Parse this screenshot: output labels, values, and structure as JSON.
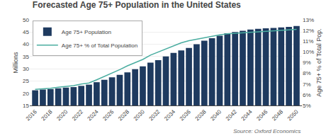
{
  "chart_data": {
    "type": "bar",
    "title": "Forecasted Age 75+ Population in the United States",
    "x": [
      2016,
      2017,
      2018,
      2019,
      2020,
      2021,
      2022,
      2023,
      2024,
      2025,
      2026,
      2027,
      2028,
      2029,
      2030,
      2031,
      2032,
      2033,
      2034,
      2035,
      2036,
      2037,
      2038,
      2039,
      2040,
      2041,
      2042,
      2043,
      2044,
      2045,
      2046,
      2047,
      2048,
      2049,
      2050
    ],
    "series": [
      {
        "name": "Age 75+ Population",
        "type": "bar",
        "color": "#1e3a5f",
        "values": [
          21.2,
          21.5,
          21.7,
          22.0,
          22.3,
          22.5,
          23.0,
          23.5,
          24.5,
          25.5,
          26.5,
          27.5,
          28.5,
          29.8,
          31.0,
          32.5,
          33.5,
          35.0,
          36.5,
          37.5,
          38.5,
          40.0,
          41.5,
          42.5,
          43.5,
          44.5,
          45.0,
          45.5,
          46.0,
          46.3,
          46.5,
          46.7,
          46.9,
          47.1,
          47.5
        ]
      },
      {
        "name": "Age 75+ % of Total Population",
        "type": "line",
        "color": "#4aada0",
        "axis": "y2",
        "values": [
          6.5,
          6.55,
          6.6,
          6.7,
          6.8,
          6.85,
          7.0,
          7.1,
          7.4,
          7.7,
          8.0,
          8.35,
          8.7,
          9.0,
          9.3,
          9.7,
          10.0,
          10.3,
          10.6,
          10.85,
          11.05,
          11.2,
          11.35,
          11.5,
          11.6,
          11.7,
          11.75,
          11.8,
          11.85,
          11.9,
          11.9,
          11.95,
          12.0,
          12.05,
          12.1
        ]
      }
    ],
    "ylabel": "Millions",
    "y2label": "Age 75+ % of Total Pop.",
    "xlim": [
      2015.3,
      2050.7
    ],
    "xticks": [
      2016,
      2018,
      2020,
      2022,
      2024,
      2026,
      2028,
      2030,
      2032,
      2034,
      2036,
      2038,
      2040,
      2042,
      2044,
      2046,
      2048,
      2050
    ],
    "ylim": [
      15,
      50
    ],
    "yticks": [
      15,
      20,
      25,
      30,
      35,
      40,
      45,
      50
    ],
    "y2lim": [
      5,
      13
    ],
    "y2ticks": [
      {
        "value": 5,
        "label": "5%"
      },
      {
        "value": 6,
        "label": "6%"
      },
      {
        "value": 7,
        "label": "7%"
      },
      {
        "value": 8,
        "label": "8%"
      },
      {
        "value": 9,
        "label": "9%"
      },
      {
        "value": 10,
        "label": "10%"
      },
      {
        "value": 11,
        "label": "11%"
      },
      {
        "value": 12,
        "label": "12%"
      },
      {
        "value": 13,
        "label": "13%"
      }
    ],
    "grid": true,
    "legend": "upper left",
    "annotations": [
      "Source: Oxford Economics"
    ]
  }
}
